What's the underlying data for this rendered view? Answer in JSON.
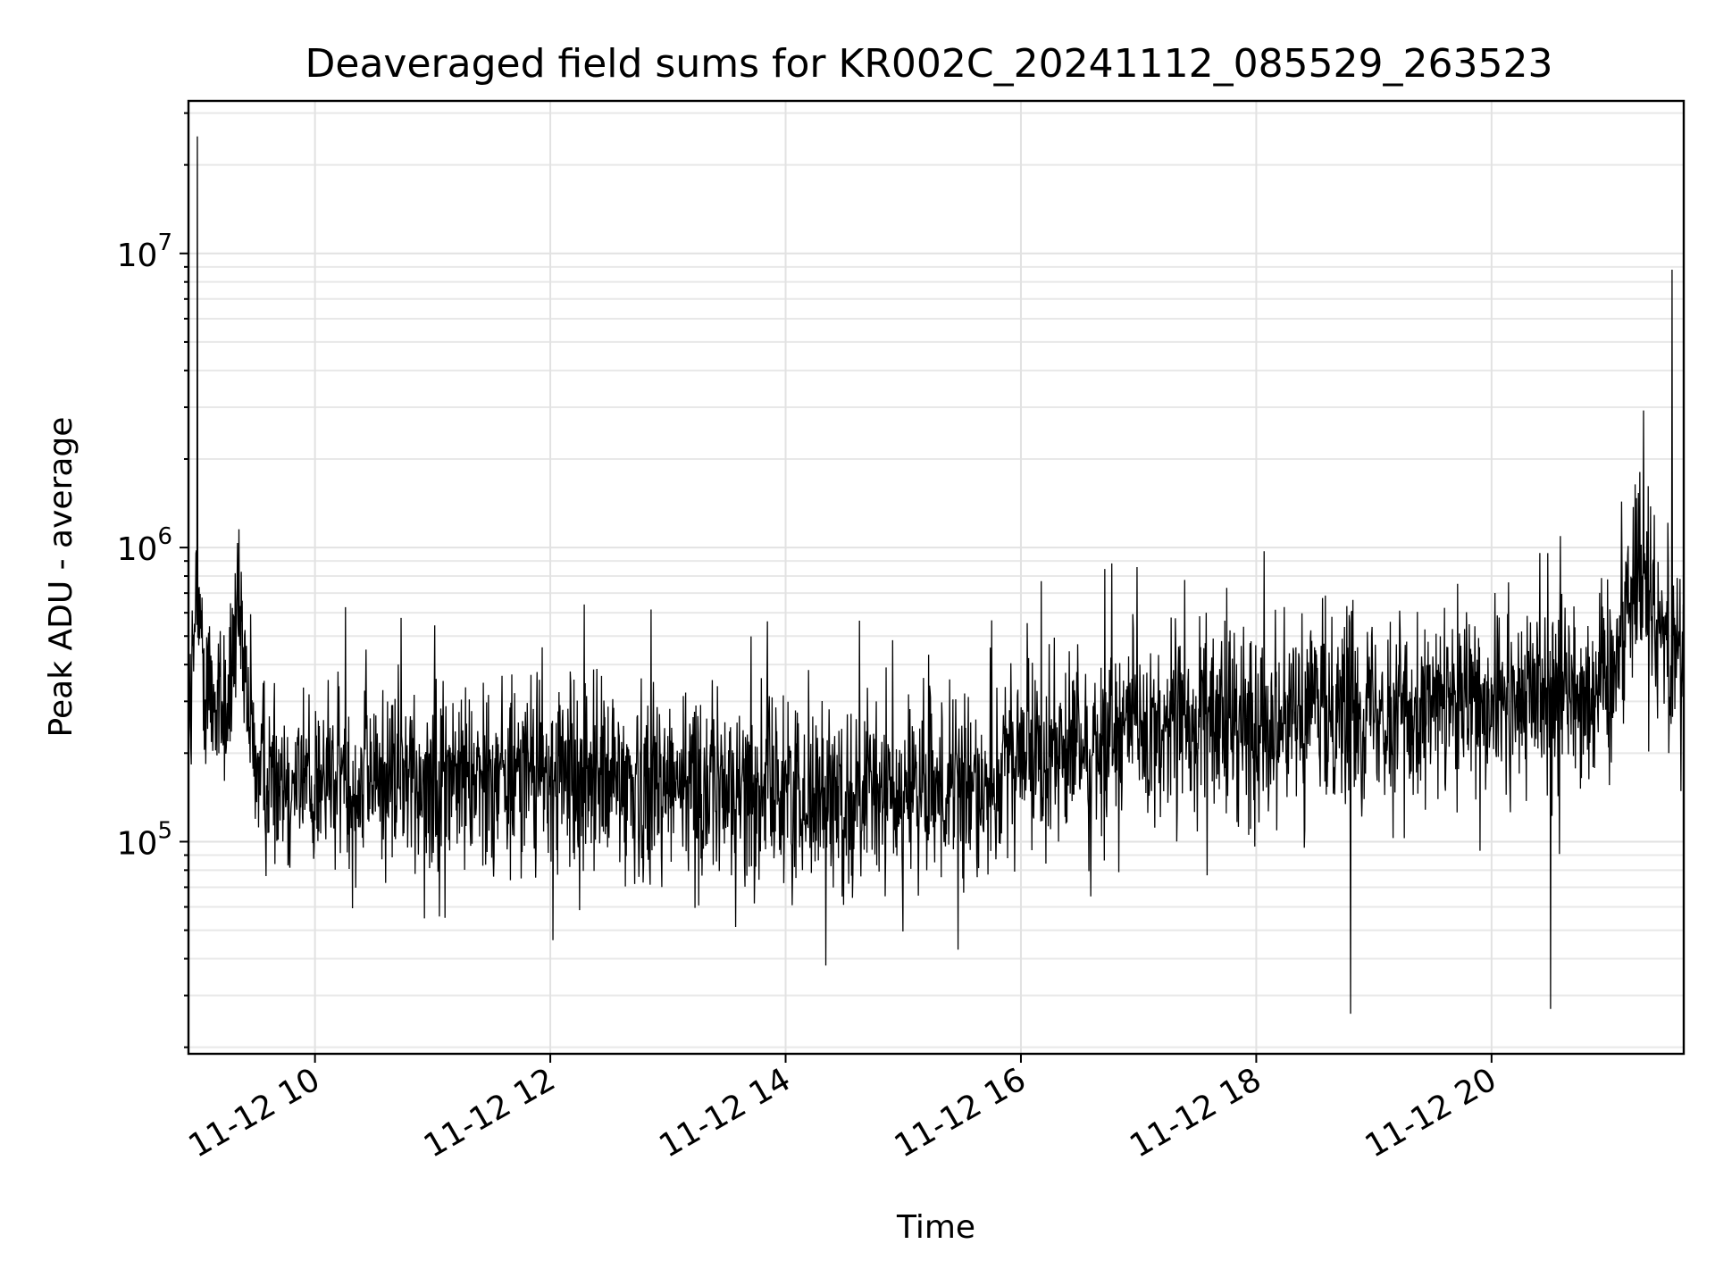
{
  "chart_data": {
    "type": "line",
    "title": "Deaveraged field sums for KR002C_20241112_085529_263523",
    "xlabel": "Time",
    "ylabel": "Peak ADU - average",
    "yscale": "log",
    "ylim": [
      19000,
      33000000
    ],
    "xlim": [
      "2024-11-12T08:55:29",
      "2024-11-12T21:38:00"
    ],
    "grid": true,
    "x_ticks": [
      {
        "value": "2024-11-12T10:00",
        "label": "11-12 10"
      },
      {
        "value": "2024-11-12T12:00",
        "label": "11-12 12"
      },
      {
        "value": "2024-11-12T14:00",
        "label": "11-12 14"
      },
      {
        "value": "2024-11-12T16:00",
        "label": "11-12 16"
      },
      {
        "value": "2024-11-12T18:00",
        "label": "11-12 18"
      },
      {
        "value": "2024-11-12T20:00",
        "label": "11-12 20"
      }
    ],
    "y_ticks": [
      {
        "value": 100000,
        "base": "10",
        "exp": "5"
      },
      {
        "value": 1000000,
        "base": "10",
        "exp": "6"
      },
      {
        "value": 10000000,
        "base": "10",
        "exp": "7"
      }
    ],
    "series": [
      {
        "color": "#000000",
        "x": [
          "2024-11-12T08:55:29",
          "2024-11-12T09:00",
          "2024-11-12T09:05",
          "2024-11-12T09:10",
          "2024-11-12T09:15",
          "2024-11-12T09:20",
          "2024-11-12T09:30",
          "2024-11-12T09:45",
          "2024-11-12T10:00",
          "2024-11-12T10:30",
          "2024-11-12T11:00",
          "2024-11-12T11:30",
          "2024-11-12T12:00",
          "2024-11-12T12:30",
          "2024-11-12T13:00",
          "2024-11-12T13:30",
          "2024-11-12T14:00",
          "2024-11-12T14:30",
          "2024-11-12T15:00",
          "2024-11-12T15:30",
          "2024-11-12T16:00",
          "2024-11-12T16:30",
          "2024-11-12T17:00",
          "2024-11-12T17:30",
          "2024-11-12T18:00",
          "2024-11-12T18:30",
          "2024-11-12T19:00",
          "2024-11-12T19:30",
          "2024-11-12T20:00",
          "2024-11-12T20:30",
          "2024-11-12T21:00",
          "2024-11-12T21:15",
          "2024-11-12T21:30",
          "2024-11-12T21:38"
        ],
        "values": [
          250000,
          600000,
          350000,
          300000,
          280000,
          550000,
          180000,
          170000,
          160000,
          170000,
          165000,
          175000,
          170000,
          160000,
          165000,
          150000,
          150000,
          145000,
          150000,
          140000,
          190000,
          210000,
          240000,
          250000,
          260000,
          280000,
          300000,
          290000,
          280000,
          320000,
          350000,
          900000,
          500000,
          480000
        ],
        "spikes": [
          {
            "x": "2024-11-12T09:00",
            "value": 25000000
          },
          {
            "x": "2024-11-12T18:48",
            "value": 26000
          },
          {
            "x": "2024-11-12T20:30",
            "value": 27000
          },
          {
            "x": "2024-11-12T21:32",
            "value": 8800000
          }
        ]
      }
    ]
  }
}
